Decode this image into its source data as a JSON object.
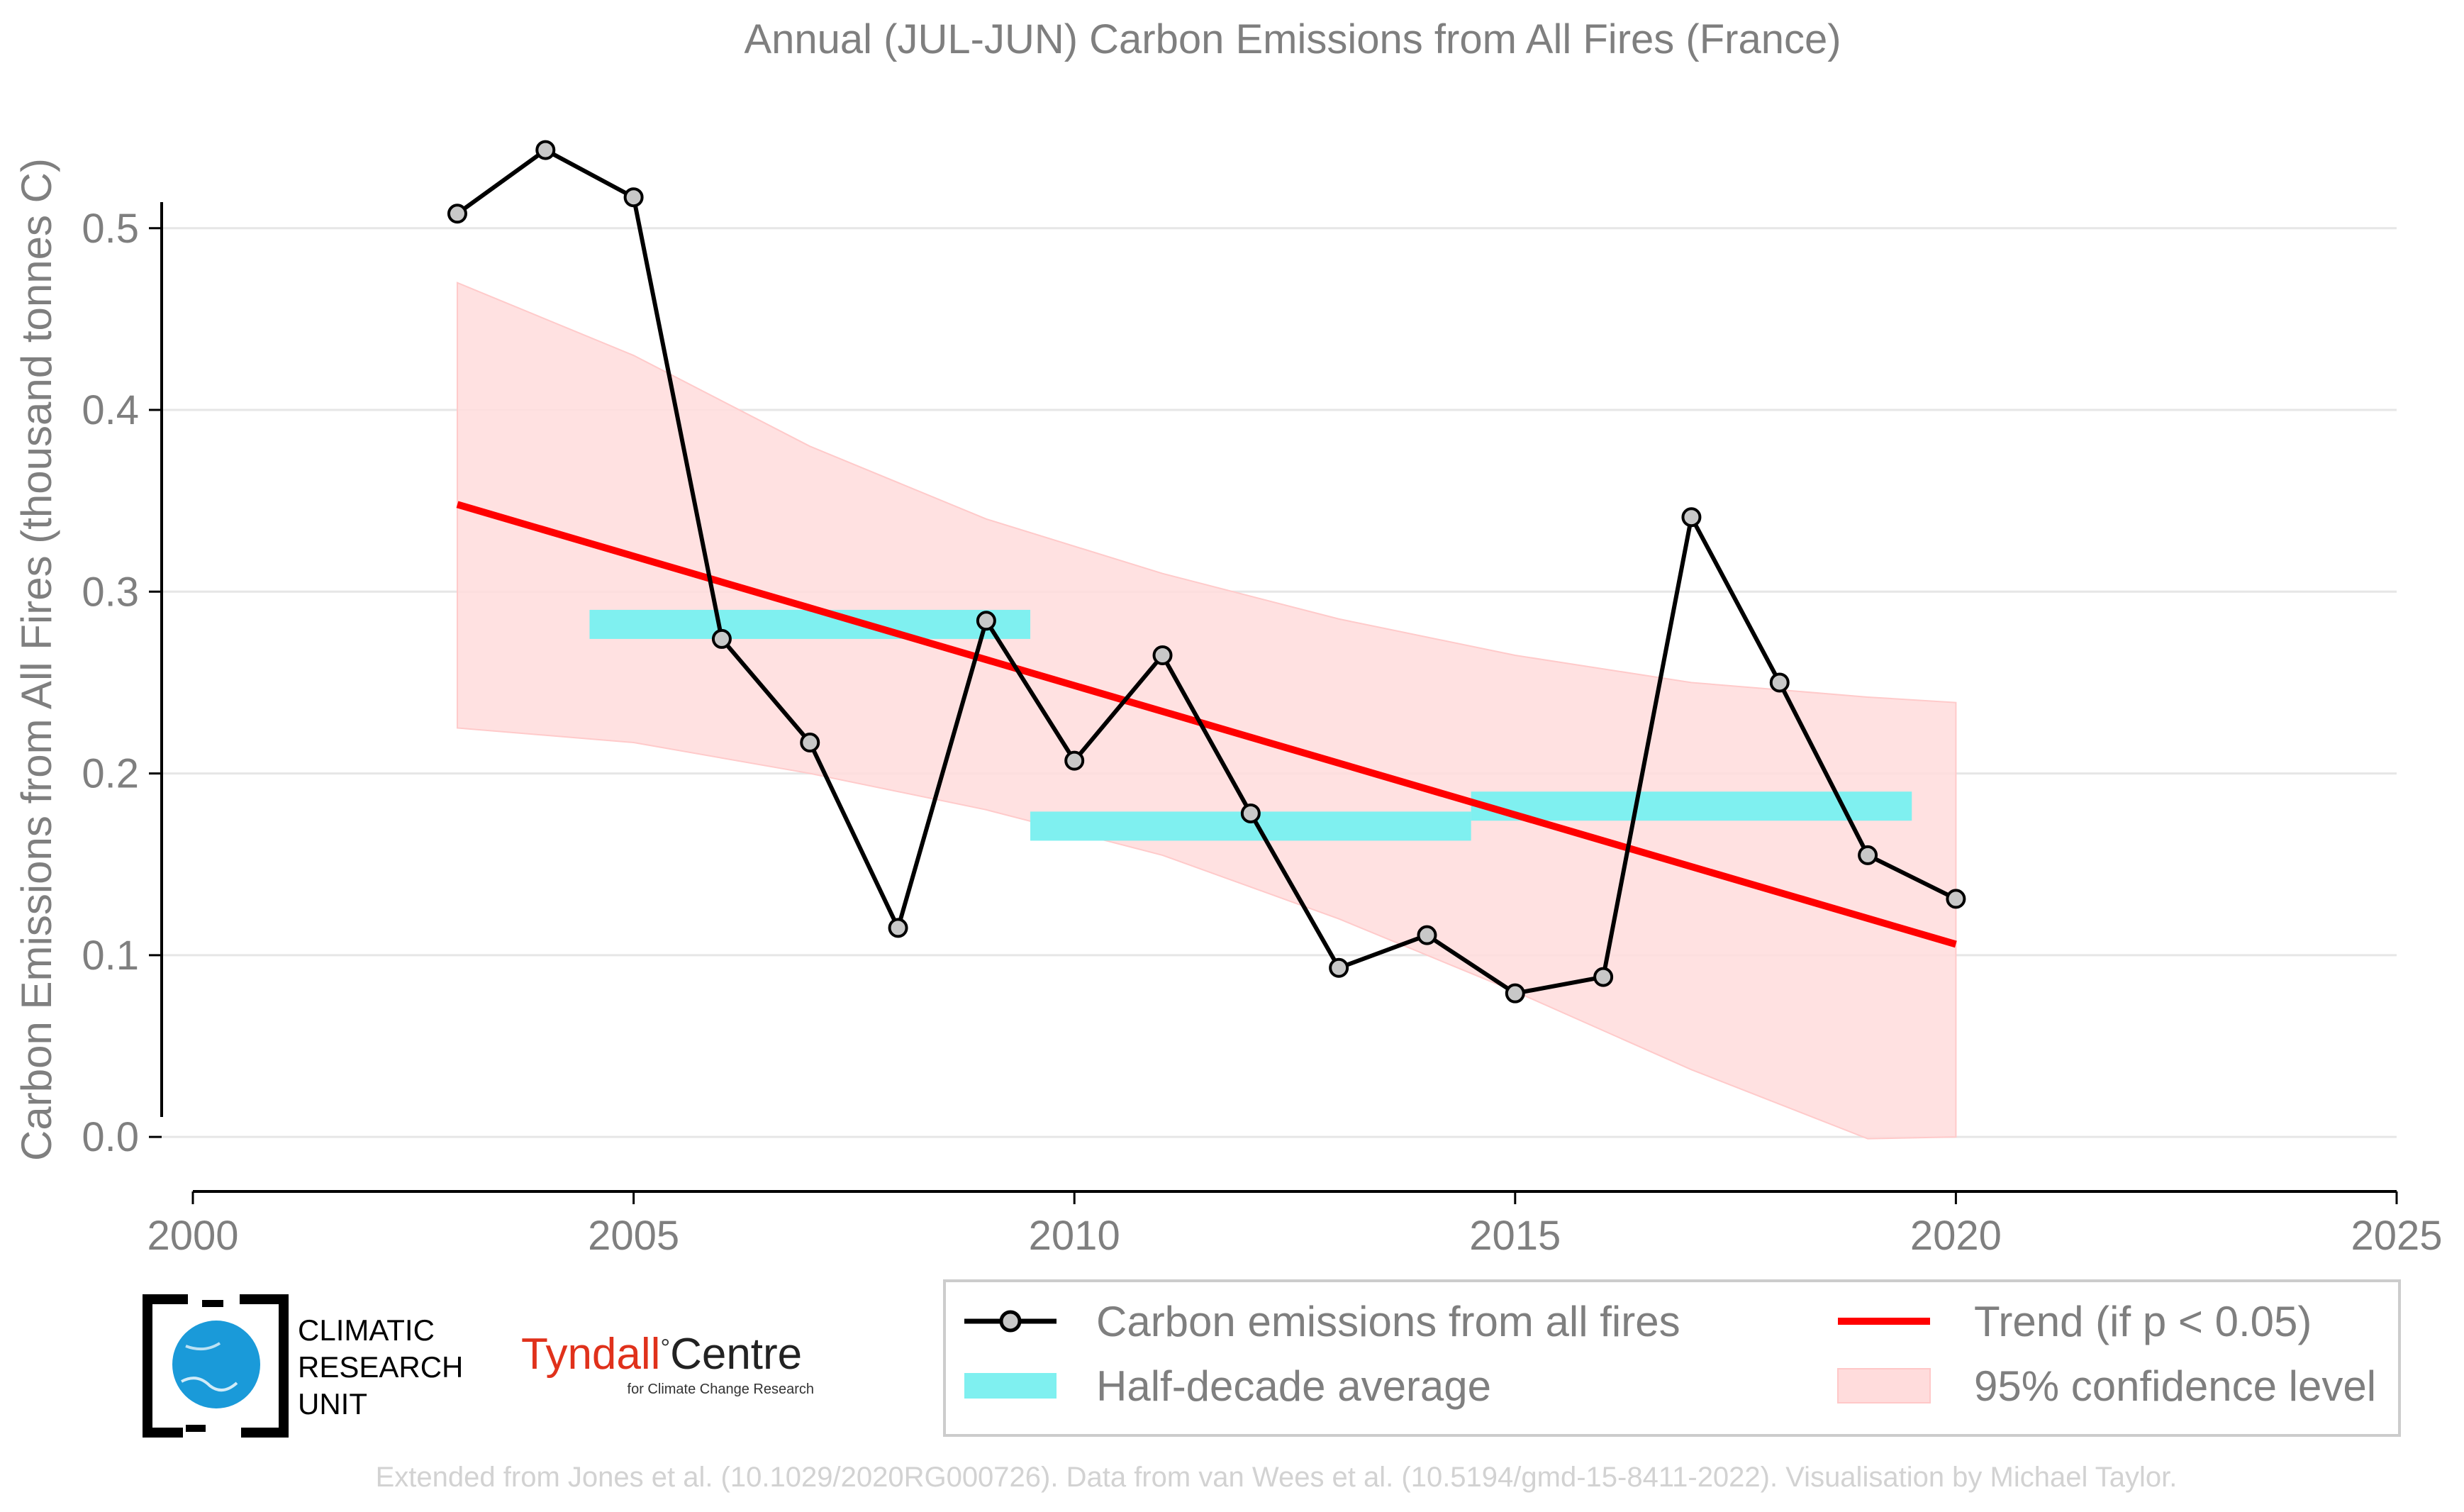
{
  "chart_data": {
    "type": "line",
    "title": "Annual (JUL-JUN) Carbon Emissions from All Fires (France)",
    "xlabel": "",
    "ylabel": "Carbon Emissions from All Fires (thousand tonnes C)",
    "xlim": [
      2000,
      2025
    ],
    "ylim": [
      -0.03,
      0.56
    ],
    "xticks": [
      2000,
      2005,
      2010,
      2015,
      2020,
      2025
    ],
    "yticks": [
      0.0,
      0.1,
      0.2,
      0.3,
      0.4,
      0.5
    ],
    "xtick_labels": [
      "2000",
      "2005",
      "2010",
      "2015",
      "2020",
      "2025"
    ],
    "ytick_labels": [
      "0.0",
      "0.1",
      "0.2",
      "0.3",
      "0.4",
      "0.5"
    ],
    "grid": true,
    "legend_position": "bottom",
    "series": [
      {
        "name": "Carbon emissions from all fires",
        "x": [
          2003,
          2004,
          2005,
          2006,
          2007,
          2008,
          2009,
          2010,
          2011,
          2012,
          2013,
          2014,
          2015,
          2016,
          2017,
          2018,
          2019,
          2020
        ],
        "y": [
          0.508,
          0.543,
          0.517,
          0.274,
          0.217,
          0.115,
          0.284,
          0.207,
          0.265,
          0.178,
          0.093,
          0.111,
          0.079,
          0.088,
          0.341,
          0.25,
          0.155,
          0.131
        ],
        "color": "#000000",
        "marker_fill": "#c8c8c8"
      },
      {
        "name": "Half-decade average",
        "segments": [
          {
            "x0": 2004.5,
            "x1": 2009.5,
            "y0": 0.274,
            "y1": 0.29
          },
          {
            "x0": 2009.5,
            "x1": 2014.5,
            "y0": 0.163,
            "y1": 0.179
          },
          {
            "x0": 2014.5,
            "x1": 2019.5,
            "y0": 0.174,
            "y1": 0.19
          }
        ],
        "color": "#7ff0f0"
      },
      {
        "name": "Trend (if p < 0.05)",
        "x": [
          2003,
          2020
        ],
        "y": [
          0.348,
          0.106
        ],
        "color": "#ff0000"
      },
      {
        "name": "95% confidence level",
        "x": [
          2003,
          2005,
          2007,
          2009,
          2011,
          2013,
          2015,
          2017,
          2019,
          2020
        ],
        "upper": [
          0.47,
          0.43,
          0.38,
          0.34,
          0.31,
          0.285,
          0.265,
          0.25,
          0.242,
          0.239
        ],
        "lower": [
          0.225,
          0.217,
          0.2,
          0.18,
          0.155,
          0.12,
          0.08,
          0.037,
          -0.001,
          0.0
        ],
        "color": "#ffdcdc"
      }
    ]
  },
  "logos": {
    "cru_lines": [
      "CLIMATIC",
      "RESEARCH",
      "UNIT"
    ],
    "tyndall_main": "Tyndall",
    "tyndall_degree": "°",
    "tyndall_centre": "Centre",
    "tyndall_sub": "for Climate Change Research"
  },
  "footer": "Extended from Jones et al. (10.1029/2020RG000726). Data from van Wees et al. (10.5194/gmd-15-8411-2022). Visualisation by Michael Taylor.",
  "colors": {
    "text": "#7f7f7f",
    "grid": "#e6e6e6",
    "line": "#000000",
    "trend": "#ff0000",
    "half_decade": "#7ff0f0",
    "confidence": "#ffdcdc",
    "cru_blue": "#1a9ad9"
  }
}
